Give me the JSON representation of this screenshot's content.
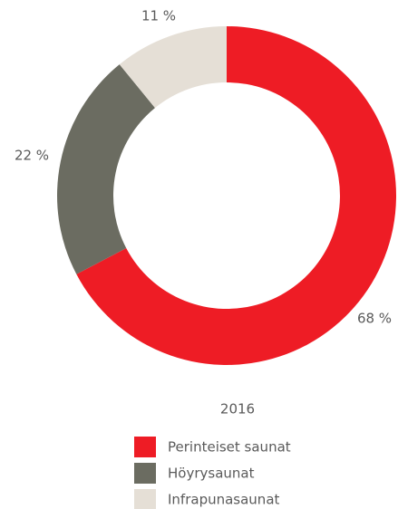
{
  "chart_data": {
    "type": "pie",
    "title": "2016",
    "categories": [
      "Perinteiset saunat",
      "Höyrysaunat",
      "Infrapunasaunat"
    ],
    "values": [
      68,
      22,
      11
    ],
    "value_labels": [
      "68 %",
      "22 %",
      "11 %"
    ],
    "colors": [
      "#ee1c25",
      "#6b6c61",
      "#e5dfd6"
    ],
    "donut": true
  }
}
